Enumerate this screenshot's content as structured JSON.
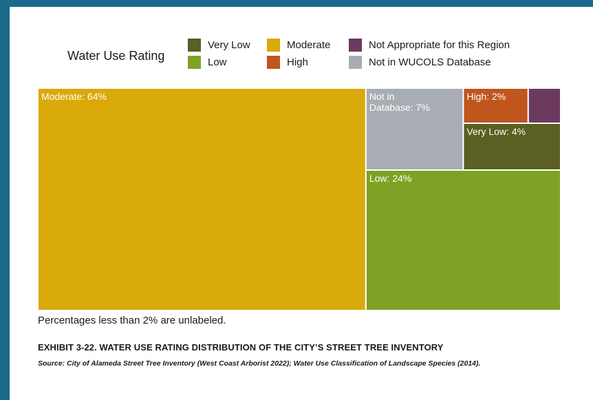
{
  "legend": {
    "title": "Water Use Rating",
    "items": [
      {
        "label": "Very Low",
        "color": "#5a5f22"
      },
      {
        "label": "Low",
        "color": "#7fa224"
      },
      {
        "label": "Moderate",
        "color": "#daa90a"
      },
      {
        "label": "High",
        "color": "#c0551d"
      },
      {
        "label": "Not Appropriate for this Region",
        "color": "#6b3a5e"
      },
      {
        "label": "Not in WUCOLS Database",
        "color": "#a8acb3"
      }
    ]
  },
  "chart_data": {
    "type": "treemap",
    "title": "",
    "legend_title": "Water Use Rating",
    "legend_position": "top",
    "unit": "%",
    "categories": [
      "Moderate",
      "Low",
      "Not in WUCOLS Database",
      "Very Low",
      "High",
      "Not Appropriate for this Region"
    ],
    "values": [
      64,
      24,
      7,
      4,
      2,
      1
    ],
    "labels": [
      "Moderate: 64%",
      "Low: 24%",
      "Not in\nDatabase: 7%",
      "Very Low: 4%",
      "High: 2%",
      ""
    ],
    "colors": [
      "#daa90a",
      "#7fa224",
      "#a8acb3",
      "#5a5f22",
      "#c0551d",
      "#6b3a5e"
    ]
  },
  "footnote": "Percentages less than 2% are unlabeled.",
  "exhibit_title": "EXHIBIT 3-22. WATER USE RATING DISTRIBUTION OF THE CITY’S STREET TREE INVENTORY",
  "source": "Source: City of Alameda Street Tree Inventory (West Coast Arborist 2022); Water Use Classification of Landscape Species (2014)."
}
